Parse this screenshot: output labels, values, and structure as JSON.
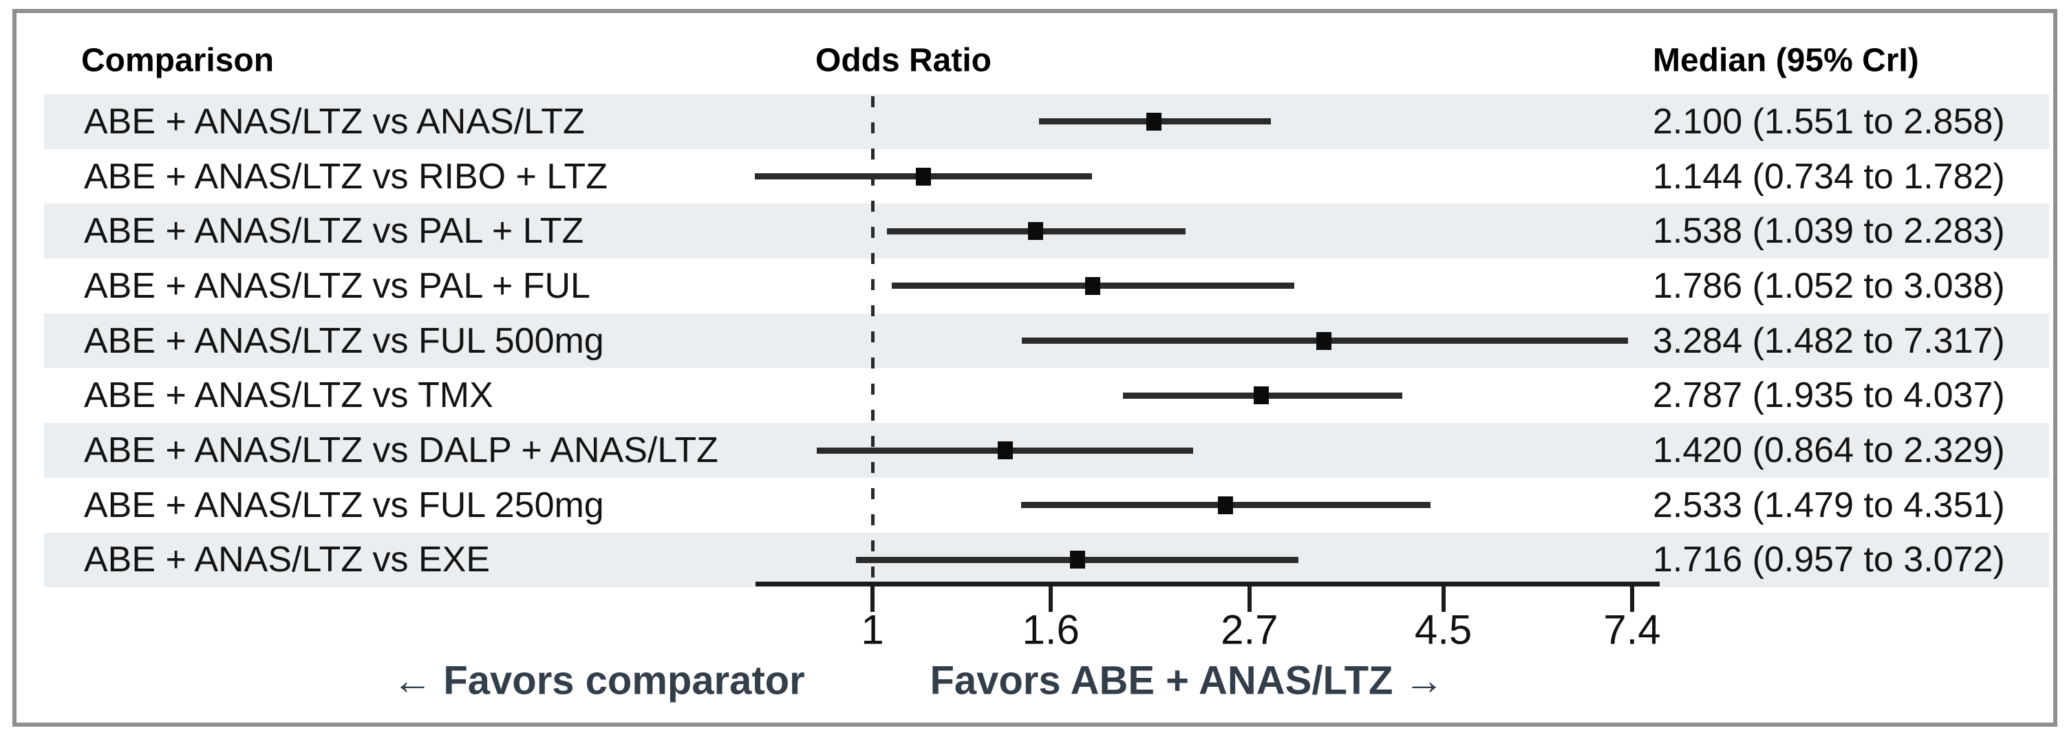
{
  "headers": {
    "comparison": "Comparison",
    "odds_ratio": "Odds Ratio",
    "median": "Median (95% CrI)"
  },
  "footer": {
    "left": "← Favors comparator",
    "right": "Favors ABE + ANAS/LTZ →"
  },
  "colors": {
    "stripe": "#eaeef0",
    "border": "#8f8f8f",
    "marker": "#0b0b0b",
    "whisker": "#2b2b2b",
    "axis": "#1b1b1b",
    "favors_text": "#333e4b",
    "text": "#131313"
  },
  "chart_data": {
    "type": "forest",
    "title": "Odds Ratio",
    "x_axis": {
      "scale": "log",
      "ticks": [
        1,
        1.6,
        2.7,
        4.5,
        7.4
      ],
      "reference_line": 1,
      "direction_labels": {
        "left_of_1": "← Favors comparator",
        "right_of_1": "Favors ABE + ANAS/LTZ →"
      }
    },
    "columns": [
      "Comparison",
      "Odds Ratio",
      "Median (95% CrI)"
    ],
    "rows": [
      {
        "label": "ABE + ANAS/LTZ vs ANAS/LTZ",
        "median": 2.1,
        "lower": 1.551,
        "upper": 2.858,
        "display": "2.100 (1.551 to 2.858)",
        "striped": true
      },
      {
        "label": "ABE + ANAS/LTZ vs RIBO + LTZ",
        "median": 1.144,
        "lower": 0.734,
        "upper": 1.782,
        "display": "1.144 (0.734 to 1.782)",
        "striped": false
      },
      {
        "label": "ABE + ANAS/LTZ vs PAL + LTZ",
        "median": 1.538,
        "lower": 1.039,
        "upper": 2.283,
        "display": "1.538 (1.039 to 2.283)",
        "striped": true
      },
      {
        "label": "ABE + ANAS/LTZ vs PAL + FUL",
        "median": 1.786,
        "lower": 1.052,
        "upper": 3.038,
        "display": "1.786 (1.052 to 3.038)",
        "striped": false
      },
      {
        "label": "ABE + ANAS/LTZ vs FUL 500mg",
        "median": 3.284,
        "lower": 1.482,
        "upper": 7.317,
        "display": "3.284 (1.482 to 7.317)",
        "striped": true
      },
      {
        "label": "ABE + ANAS/LTZ vs TMX",
        "median": 2.787,
        "lower": 1.935,
        "upper": 4.037,
        "display": "2.787 (1.935 to 4.037)",
        "striped": false
      },
      {
        "label": "ABE + ANAS/LTZ vs DALP + ANAS/LTZ",
        "median": 1.42,
        "lower": 0.864,
        "upper": 2.329,
        "display": "1.420 (0.864 to 2.329)",
        "striped": true
      },
      {
        "label": "ABE + ANAS/LTZ vs FUL 250mg",
        "median": 2.533,
        "lower": 1.479,
        "upper": 4.351,
        "display": "2.533 (1.479 to 4.351)",
        "striped": false
      },
      {
        "label": "ABE + ANAS/LTZ vs EXE",
        "median": 1.716,
        "lower": 0.957,
        "upper": 3.072,
        "display": "1.716 (0.957 to 3.072)",
        "striped": true
      }
    ]
  }
}
